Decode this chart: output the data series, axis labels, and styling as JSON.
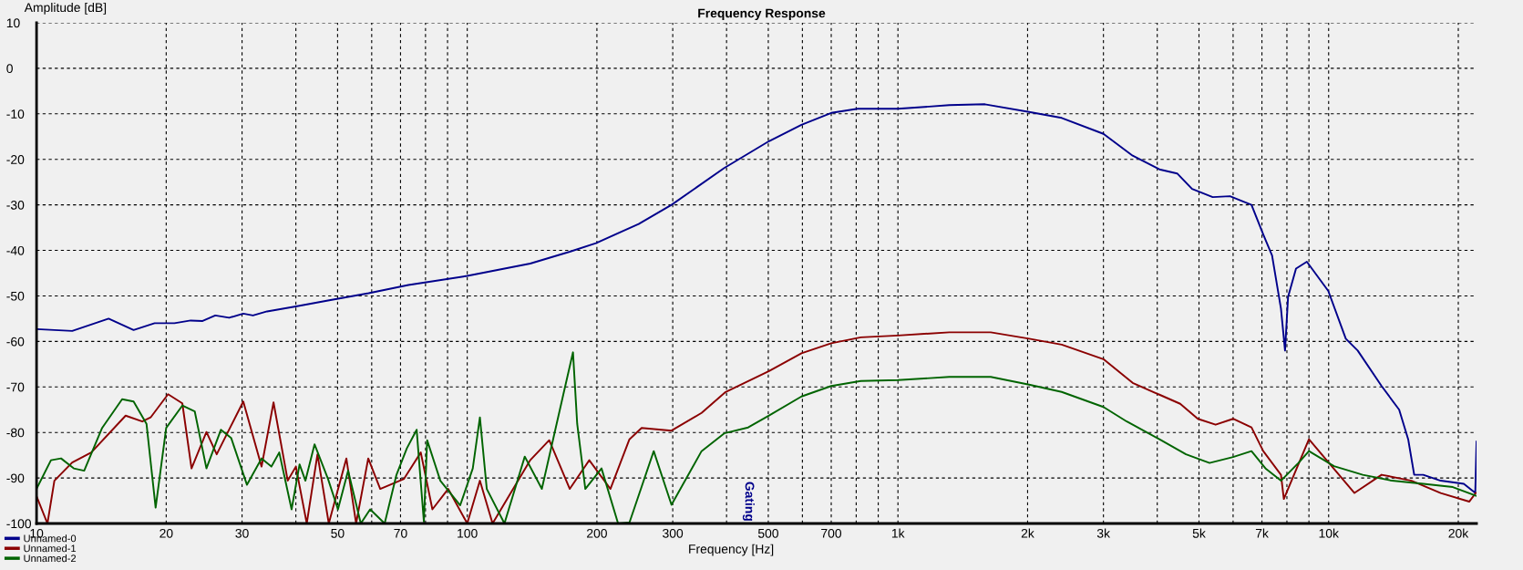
{
  "chart_data": {
    "type": "line",
    "title": "Frequency Response",
    "xlabel": "Frequency [Hz]",
    "ylabel": "Amplitude [dB]",
    "log": "x",
    "grid": true,
    "legend": "bottom left",
    "line_style": "solid",
    "marker": "none",
    "xlim": [
      10,
      22050
    ],
    "ylim": [
      -100,
      10
    ],
    "xticks": [
      10,
      20,
      30,
      {
        "value": 40,
        "label": null
      },
      50,
      {
        "value": 60,
        "label": null
      },
      70,
      {
        "value": 80,
        "label": null
      },
      {
        "value": 90,
        "label": null
      },
      100,
      200,
      300,
      {
        "value": 400,
        "label": null
      },
      500,
      {
        "value": 600,
        "label": null
      },
      700,
      {
        "value": 800,
        "label": null
      },
      {
        "value": 900,
        "label": null
      },
      {
        "value": 1000,
        "label": "1k"
      },
      {
        "value": 2000,
        "label": "2k"
      },
      {
        "value": 3000,
        "label": "3k"
      },
      {
        "value": 4000,
        "label": null
      },
      {
        "value": 5000,
        "label": "5k"
      },
      {
        "value": 6000,
        "label": null
      },
      {
        "value": 7000,
        "label": "7k"
      },
      {
        "value": 8000,
        "label": null
      },
      {
        "value": 9000,
        "label": null
      },
      {
        "value": 10000,
        "label": "10k"
      },
      {
        "value": 20000,
        "label": "20k"
      }
    ],
    "yticks": [
      -100,
      -90,
      -80,
      -70,
      -60,
      -50,
      -40,
      -30,
      -20,
      -10,
      0,
      10
    ],
    "annotations": [
      "Gating"
    ],
    "series": [
      {
        "name": "Unnamed-0",
        "color": "#00008b",
        "x": [
          10,
          12.1,
          14.7,
          16.8,
          18.8,
          20.9,
          22.8,
          24.3,
          26,
          28,
          30.2,
          31.8,
          34.3,
          40,
          47.5,
          59,
          73,
          100,
          140,
          173,
          199,
          250,
          298,
          395,
          502,
          597,
          700,
          806,
          1000,
          1316,
          1592,
          2016,
          2400,
          3000,
          3507,
          4047,
          4449,
          4818,
          5380,
          5900,
          6620,
          7050,
          7390,
          7750,
          7920,
          8050,
          8400,
          8900,
          9980,
          10960,
          11680,
          13270,
          14580,
          15300,
          15800,
          16580,
          18200,
          20600,
          21900,
          22050
        ],
        "values": [
          -57.3,
          -57.7,
          -55,
          -57.5,
          -56,
          -56,
          -55.4,
          -55.5,
          -54.3,
          -54.8,
          -53.9,
          -54.3,
          -53.4,
          -52.3,
          -51,
          -49.4,
          -47.6,
          -45.6,
          -42.9,
          -40.3,
          -38.4,
          -34.2,
          -30,
          -21.9,
          -16,
          -12.4,
          -9.8,
          -8.9,
          -8.9,
          -8.1,
          -7.9,
          -9.6,
          -10.9,
          -14.4,
          -19.2,
          -22.2,
          -23.1,
          -26.5,
          -28.3,
          -28.1,
          -30,
          -36.5,
          -41.1,
          -52.8,
          -62,
          -50.2,
          -44,
          -42.5,
          -48.9,
          -59.4,
          -62,
          -69.8,
          -75,
          -81.5,
          -89.3,
          -89.3,
          -90.6,
          -91.3,
          -93.3,
          -82
        ]
      },
      {
        "name": "Unnamed-1",
        "color": "#8b0000",
        "x": [
          10,
          10.6,
          11,
          12.1,
          13.4,
          16.1,
          17.6,
          18.4,
          20.2,
          21.8,
          22.9,
          24.8,
          26.2,
          30.2,
          33.3,
          35.5,
          38.3,
          40,
          42.4,
          44.9,
          47.7,
          52.4,
          55.2,
          58.9,
          62.8,
          71.3,
          78,
          83,
          90.3,
          100,
          107,
          114.5,
          140,
          155,
          173,
          192,
          215,
          238,
          254,
          298,
          350,
          398,
          502,
          597,
          700,
          820,
          1000,
          1316,
          1642,
          2016,
          2400,
          3000,
          3507,
          4047,
          4522,
          4970,
          5465,
          6000,
          6620,
          7050,
          7750,
          7870,
          9000,
          10290,
          11480,
          13270,
          15570,
          18200,
          21200,
          21960
        ],
        "values": [
          -94,
          -100,
          -90.6,
          -86.6,
          -84.4,
          -76.3,
          -77.6,
          -76.7,
          -71.6,
          -73.6,
          -87.9,
          -79.9,
          -84.8,
          -73.2,
          -87.5,
          -73.4,
          -90.6,
          -87.5,
          -100,
          -84.8,
          -100,
          -85.7,
          -100,
          -85.7,
          -92.4,
          -90.2,
          -84.4,
          -96.9,
          -92.4,
          -100,
          -90.6,
          -100,
          -86.1,
          -81.7,
          -92.4,
          -86.1,
          -92.4,
          -81.5,
          -79,
          -79.6,
          -75.7,
          -71.1,
          -66.5,
          -62.6,
          -60.4,
          -59.1,
          -58.7,
          -58,
          -58,
          -59.4,
          -60.7,
          -63.9,
          -69.1,
          -71.7,
          -73.7,
          -77,
          -78.3,
          -77,
          -78.9,
          -84.1,
          -89.3,
          -94.6,
          -81.5,
          -88,
          -93.3,
          -89.3,
          -90.6,
          -93.3,
          -95.2,
          -93.3
        ]
      },
      {
        "name": "Unnamed-2",
        "color": "#006400",
        "x": [
          10,
          10.8,
          11.4,
          12.2,
          12.9,
          14.2,
          15.8,
          16.8,
          18,
          18.9,
          20,
          21.8,
          23.3,
          24.8,
          26.8,
          28.3,
          30.8,
          33.3,
          35.1,
          36.6,
          39.1,
          40.8,
          42.1,
          44.2,
          47.5,
          50.1,
          52.9,
          56.6,
          59.5,
          64.3,
          68.5,
          72.4,
          76.3,
          79.3,
          80.7,
          86.6,
          96.3,
          103,
          107,
          111,
          122,
          136,
          149,
          167,
          176,
          180,
          188,
          205,
          224,
          238,
          271,
          298,
          350,
          395,
          449,
          502,
          597,
          700,
          820,
          1000,
          1316,
          1642,
          2016,
          2400,
          3000,
          3400,
          4047,
          4664,
          5290,
          6000,
          6620,
          7150,
          7750,
          8510,
          9000,
          10290,
          12000,
          14030,
          16580,
          19420,
          21960
        ],
        "values": [
          -92.4,
          -86.1,
          -85.7,
          -87.9,
          -88.4,
          -79,
          -72.7,
          -73.2,
          -78.1,
          -96.5,
          -79,
          -74.1,
          -75.4,
          -87.9,
          -79.4,
          -81.2,
          -91.5,
          -85.7,
          -87.5,
          -84.4,
          -96.9,
          -87,
          -90.6,
          -82.6,
          -90.2,
          -96.9,
          -88.4,
          -100,
          -96.9,
          -100,
          -89.3,
          -83.5,
          -79.4,
          -99.6,
          -81.7,
          -90.6,
          -96,
          -87.9,
          -76.7,
          -92.4,
          -100,
          -85.3,
          -92.4,
          -71.8,
          -62.4,
          -78.1,
          -92.4,
          -87.9,
          -100,
          -99.8,
          -84.1,
          -95.9,
          -84.1,
          -80.2,
          -78.9,
          -76.3,
          -72.1,
          -69.8,
          -68.7,
          -68.5,
          -67.8,
          -67.8,
          -69.5,
          -71.1,
          -74.4,
          -77.6,
          -81.5,
          -84.8,
          -86.7,
          -85.4,
          -84.1,
          -88,
          -90.6,
          -86.7,
          -84.1,
          -87.4,
          -89.3,
          -90.6,
          -91.3,
          -92,
          -93.9
        ]
      }
    ]
  }
}
